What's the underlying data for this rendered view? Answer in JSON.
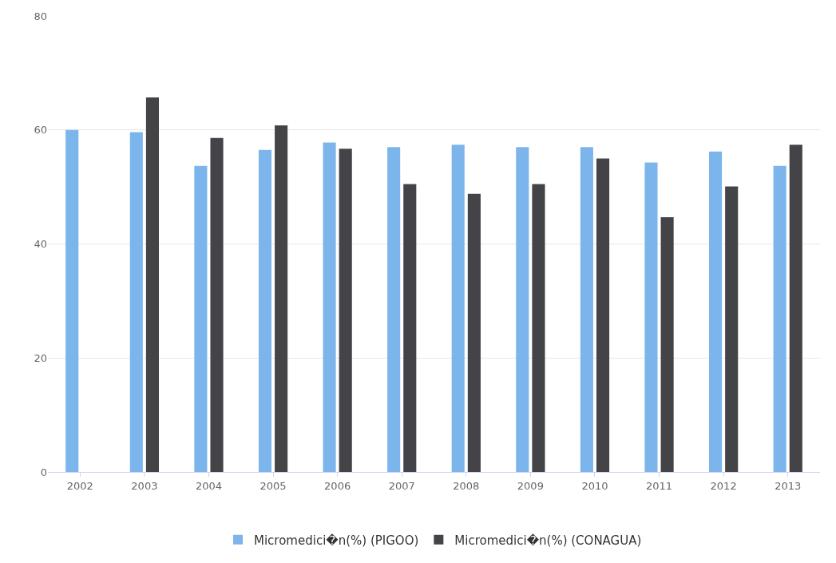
{
  "chart_data": {
    "type": "bar",
    "categories": [
      "2002",
      "2003",
      "2004",
      "2005",
      "2006",
      "2007",
      "2008",
      "2009",
      "2010",
      "2011",
      "2012",
      "2013"
    ],
    "series": [
      {
        "name": "Micromedici�n(%) (PIGOO)",
        "color": "#7cb5ec",
        "values": [
          60,
          59.6,
          53.7,
          56.5,
          57.8,
          57,
          57.4,
          57,
          57,
          54.3,
          56.2,
          53.7
        ]
      },
      {
        "name": "Micromedici�n(%) (CONAGUA)",
        "color": "#434348",
        "values": [
          null,
          65.7,
          58.6,
          60.8,
          56.7,
          50.5,
          48.8,
          50.5,
          55,
          44.7,
          50.1,
          57.4
        ]
      }
    ],
    "ylim": [
      0,
      80
    ],
    "yticks": [
      0,
      20,
      40,
      60,
      80
    ],
    "grid": "y",
    "legend": "bottom"
  }
}
